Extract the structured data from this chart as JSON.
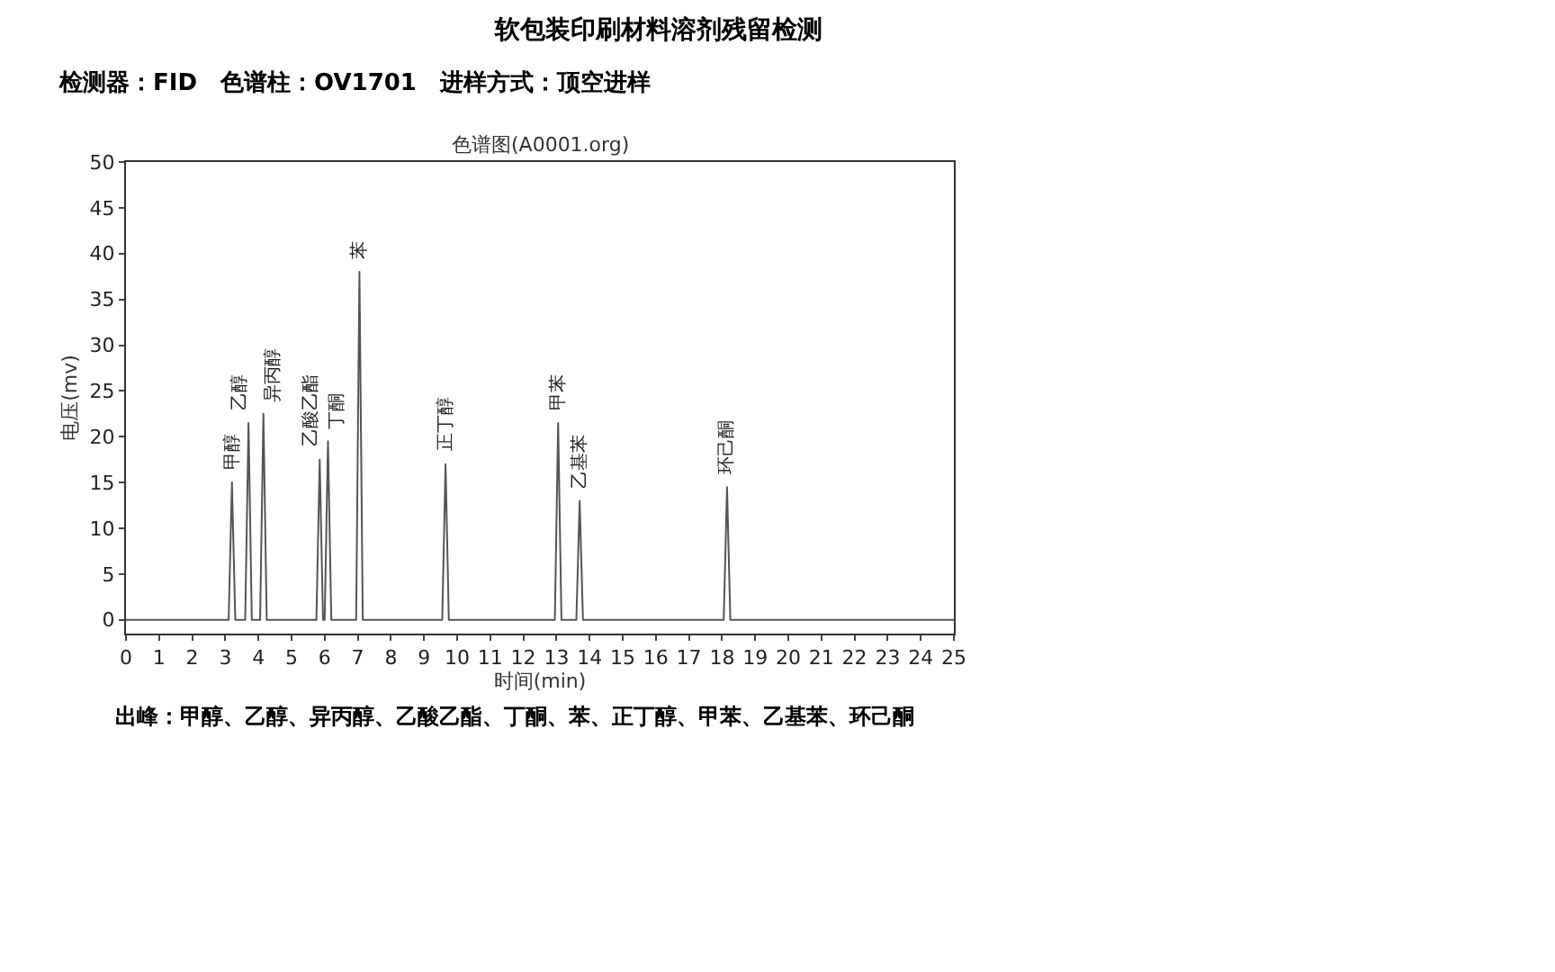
{
  "chart_data": {
    "type": "line",
    "title": "软包装印刷材料溶剂残留检测",
    "subtitle": "检测器：FID　色谱柱：OV1701　进样方式：顶空进样",
    "xlabel": "时间(min)",
    "ylabel": "电压(mv)",
    "series": [
      {
        "color": "#555555",
        "x": [
          0,
          3.1,
          3.2,
          3.3,
          3.6,
          3.7,
          3.8,
          4.05,
          4.15,
          4.25,
          5.75,
          5.85,
          5.95,
          6.0,
          6.1,
          6.2,
          6.95,
          7.05,
          7.15,
          9.55,
          9.65,
          9.75,
          12.95,
          13.05,
          13.15,
          13.6,
          13.7,
          13.8,
          18.05,
          18.15,
          18.25,
          25
        ],
        "values": [
          0,
          0,
          15,
          0,
          0,
          21.5,
          0,
          0,
          22.5,
          0,
          0,
          17.5,
          0,
          0,
          19.5,
          0,
          0,
          38,
          0,
          0,
          17,
          0,
          0,
          21.5,
          0,
          0,
          13,
          0,
          0,
          14.5,
          0,
          0
        ]
      }
    ],
    "xlim": [
      0,
      25
    ],
    "ylim": [
      -1.5,
      50
    ],
    "xticks": [
      0,
      1,
      2,
      3,
      4,
      5,
      6,
      7,
      8,
      9,
      10,
      11,
      12,
      13,
      14,
      15,
      16,
      17,
      18,
      19,
      20,
      21,
      22,
      23,
      24,
      25
    ],
    "yticks": [
      0,
      5,
      10,
      15,
      20,
      25,
      30,
      35,
      40,
      45,
      50
    ],
    "marker": "none",
    "line_style": "solid",
    "annotations": [
      "色谱图(A0001.org)",
      "出峰：甲醇、乙醇、异丙醇、乙酸乙酯、丁酮、苯、正丁醇、甲苯、乙基苯、环己酮",
      {
        "text": "甲醇",
        "x": 3.2,
        "y": 15
      },
      {
        "text": "乙醇",
        "x": 3.7,
        "y": 21.5
      },
      {
        "text": "异丙醇",
        "x": 4.15,
        "y": 22.5
      },
      {
        "text": "乙酸乙酯",
        "x": 5.85,
        "y": 17.5
      },
      {
        "text": "丁酮",
        "x": 6.1,
        "y": 19.5
      },
      {
        "text": "苯",
        "x": 7.05,
        "y": 38
      },
      {
        "text": "正丁醇",
        "x": 9.65,
        "y": 17
      },
      {
        "text": "甲苯",
        "x": 13.05,
        "y": 21.5
      },
      {
        "text": "乙基苯",
        "x": 13.7,
        "y": 13
      },
      {
        "text": "环己酮",
        "x": 18.15,
        "y": 14.5
      }
    ]
  }
}
